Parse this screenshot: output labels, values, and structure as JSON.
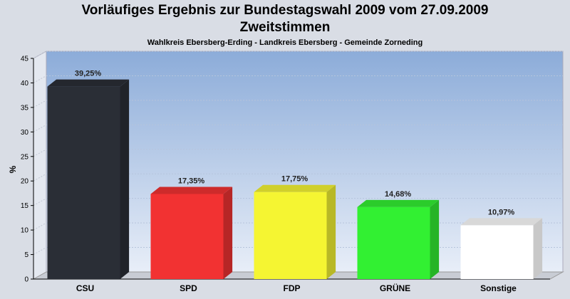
{
  "chart_data": {
    "type": "bar",
    "title_line1": "Vorläufiges Ergebnis zur Bundestagswahl 2009 vom 27.09.2009",
    "title_line2": "Zweitstimmen",
    "subtitle": "Wahlkreis Ebersberg-Erding - Landkreis Ebersberg - Gemeinde Zorneding",
    "xlabel": "",
    "ylabel": "%",
    "ylim": [
      0,
      45
    ],
    "yticks": [
      0,
      5,
      10,
      15,
      20,
      25,
      30,
      35,
      40,
      45
    ],
    "grid": true,
    "categories": [
      "CSU",
      "SPD",
      "FDP",
      "GRÜNE",
      "Sonstige"
    ],
    "values": [
      39.25,
      17.35,
      17.75,
      14.68,
      10.97
    ],
    "value_labels": [
      "39,25%",
      "17,35%",
      "17,75%",
      "14,68%",
      "10,97%"
    ],
    "colors": [
      "#2a2e36",
      "#f23232",
      "#f5f532",
      "#32f032",
      "#ffffff"
    ],
    "background_top": "#8cacd9",
    "background_bottom": "#e8eef8"
  }
}
